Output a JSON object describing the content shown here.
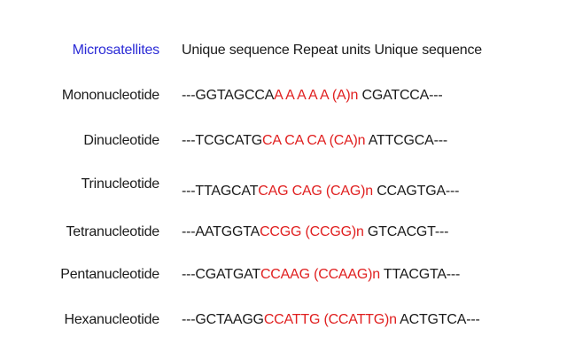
{
  "header": {
    "title": "Microsatellites",
    "columns": "Unique sequence Repeat units Unique sequence",
    "title_color": "#2b2bd6"
  },
  "rows": [
    {
      "label": "Mononucleotide",
      "flank_left": "---GGTAGCCA",
      "repeat": "A A A A A (A)n",
      "flank_right": " CGATCCA---"
    },
    {
      "label": "Dinucleotide",
      "flank_left": "---TCGCATG",
      "repeat": "CA CA CA (CA)n",
      "flank_right": " ATTCGCA---"
    },
    {
      "label": "Trinucleotide",
      "flank_left": "---TTAGCAT",
      "repeat": "CAG CAG (CAG)n",
      "flank_right": " CCAGTGA---"
    },
    {
      "label": "Tetranucleotide",
      "flank_left": "---AATGGTA",
      "repeat": "CCGG (CCGG)n",
      "flank_right": " GTCACGT---"
    },
    {
      "label": "Pentanucleotide",
      "flank_left": "---CGATGAT",
      "repeat": "CCAAG (CCAAG)n",
      "flank_right": " TTACGTA---"
    },
    {
      "label": "Hexanucleotide",
      "flank_left": "---GCTAAGG",
      "repeat": "CCATTG (CCATTG)n",
      "flank_right": " ACTGTCA---"
    }
  ],
  "colors": {
    "repeat": "#e02020",
    "flank": "#1a1a1a"
  }
}
